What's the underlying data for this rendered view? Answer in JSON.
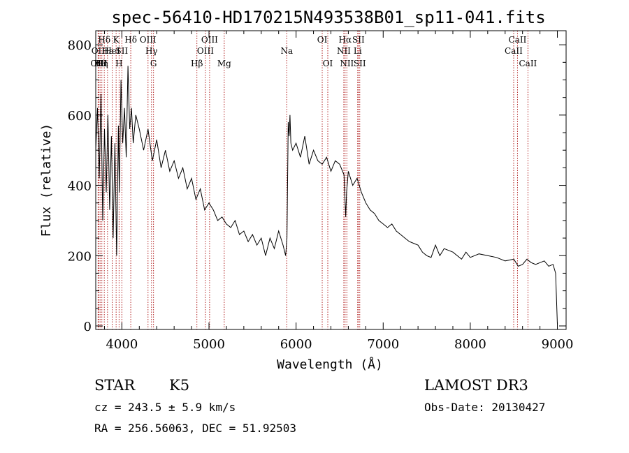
{
  "chart_data": {
    "type": "line",
    "title": "spec-56410-HD170215N493538B01_sp11-041.fits",
    "xlabel": "Wavelength (Å)",
    "ylabel": "Flux (relative)",
    "xlim": [
      3700,
      9100
    ],
    "ylim": [
      -10,
      840
    ],
    "xticks": [
      4000,
      5000,
      6000,
      7000,
      8000,
      9000
    ],
    "yticks": [
      0,
      200,
      400,
      600,
      800
    ],
    "grid": false,
    "line_color": "#000000",
    "marker_color": "#b22222",
    "spectrum": {
      "x": [
        3700,
        3720,
        3740,
        3760,
        3780,
        3800,
        3820,
        3840,
        3860,
        3880,
        3900,
        3920,
        3940,
        3960,
        3970,
        3990,
        4010,
        4030,
        4050,
        4070,
        4090,
        4110,
        4130,
        4160,
        4200,
        4250,
        4300,
        4350,
        4400,
        4450,
        4500,
        4550,
        4600,
        4650,
        4700,
        4750,
        4800,
        4850,
        4900,
        4950,
        5000,
        5050,
        5100,
        5150,
        5200,
        5250,
        5300,
        5350,
        5400,
        5450,
        5500,
        5550,
        5600,
        5650,
        5700,
        5750,
        5800,
        5850,
        5880,
        5895,
        5910,
        5920,
        5930,
        5940,
        5960,
        6000,
        6050,
        6100,
        6150,
        6200,
        6250,
        6300,
        6350,
        6400,
        6450,
        6500,
        6550,
        6570,
        6580,
        6600,
        6650,
        6700,
        6750,
        6800,
        6850,
        6900,
        6950,
        7000,
        7050,
        7100,
        7150,
        7200,
        7250,
        7300,
        7350,
        7400,
        7450,
        7500,
        7550,
        7600,
        7650,
        7700,
        7750,
        7800,
        7850,
        7900,
        7950,
        8000,
        8100,
        8200,
        8300,
        8400,
        8500,
        8550,
        8600,
        8650,
        8700,
        8750,
        8800,
        8850,
        8900,
        8950,
        8980,
        9000
      ],
      "y": [
        500,
        620,
        420,
        660,
        300,
        560,
        380,
        600,
        330,
        540,
        250,
        520,
        200,
        570,
        380,
        700,
        520,
        620,
        480,
        740,
        560,
        620,
        520,
        600,
        560,
        500,
        560,
        470,
        530,
        450,
        500,
        440,
        470,
        420,
        450,
        390,
        420,
        360,
        390,
        330,
        350,
        330,
        300,
        310,
        290,
        280,
        300,
        260,
        270,
        240,
        260,
        230,
        250,
        200,
        250,
        220,
        270,
        230,
        200,
        250,
        580,
        540,
        600,
        520,
        500,
        520,
        480,
        540,
        460,
        500,
        470,
        460,
        480,
        440,
        470,
        460,
        430,
        310,
        380,
        440,
        400,
        420,
        380,
        350,
        330,
        320,
        300,
        290,
        280,
        290,
        270,
        260,
        250,
        240,
        235,
        230,
        210,
        200,
        195,
        230,
        200,
        220,
        215,
        210,
        200,
        190,
        210,
        195,
        205,
        200,
        195,
        185,
        190,
        170,
        175,
        190,
        180,
        175,
        180,
        185,
        170,
        175,
        150,
        5
      ]
    },
    "lines": [
      {
        "label": "OII",
        "x": 3727,
        "tier": 2
      },
      {
        "label": "OIII",
        "x": 3735,
        "tier": 3
      },
      {
        "label": "Hθ",
        "x": 3750,
        "tier": 3
      },
      {
        "label": "Hη",
        "x": 3770,
        "tier": 3
      },
      {
        "label": "Hδ",
        "x": 3798,
        "tier": 1
      },
      {
        "label": "Hε",
        "x": 3835,
        "tier": 2
      },
      {
        "label": "HeI",
        "x": 3889,
        "tier": 2
      },
      {
        "label": "K",
        "x": 3934,
        "tier": 1
      },
      {
        "label": "H",
        "x": 3968,
        "tier": 3
      },
      {
        "label": "SII",
        "x": 4000,
        "tier": 2
      },
      {
        "label": "Hδ",
        "x": 4102,
        "tier": 1
      },
      {
        "label": "OIII",
        "x": 4300,
        "tier": 1
      },
      {
        "label": "Hγ",
        "x": 4340,
        "tier": 2
      },
      {
        "label": "G",
        "x": 4363,
        "tier": 3
      },
      {
        "label": "Hβ",
        "x": 4861,
        "tier": 3
      },
      {
        "label": "OIII",
        "x": 4959,
        "tier": 2
      },
      {
        "label": "OIII",
        "x": 5007,
        "tier": 1
      },
      {
        "label": "Mg",
        "x": 5175,
        "tier": 3
      },
      {
        "label": "Na",
        "x": 5893,
        "tier": 2
      },
      {
        "label": "OI",
        "x": 6300,
        "tier": 1
      },
      {
        "label": "OI",
        "x": 6364,
        "tier": 3
      },
      {
        "label": "NII",
        "x": 6548,
        "tier": 2
      },
      {
        "label": "Hα",
        "x": 6563,
        "tier": 1
      },
      {
        "label": "NII",
        "x": 6583,
        "tier": 3
      },
      {
        "label": "Li",
        "x": 6707,
        "tier": 2
      },
      {
        "label": "SII",
        "x": 6716,
        "tier": 1
      },
      {
        "label": "SII",
        "x": 6731,
        "tier": 3
      },
      {
        "label": "CaII",
        "x": 8498,
        "tier": 2
      },
      {
        "label": "CaII",
        "x": 8542,
        "tier": 1
      },
      {
        "label": "CaII",
        "x": 8662,
        "tier": 3
      }
    ]
  },
  "info": {
    "class": "STAR",
    "subclass": "K5",
    "survey": "LAMOST DR3",
    "cz": "cz = 243.5 ± 5.9 km/s",
    "obs_date": "Obs-Date: 20130427",
    "coords": "RA = 256.56063, DEC =  51.92503"
  }
}
